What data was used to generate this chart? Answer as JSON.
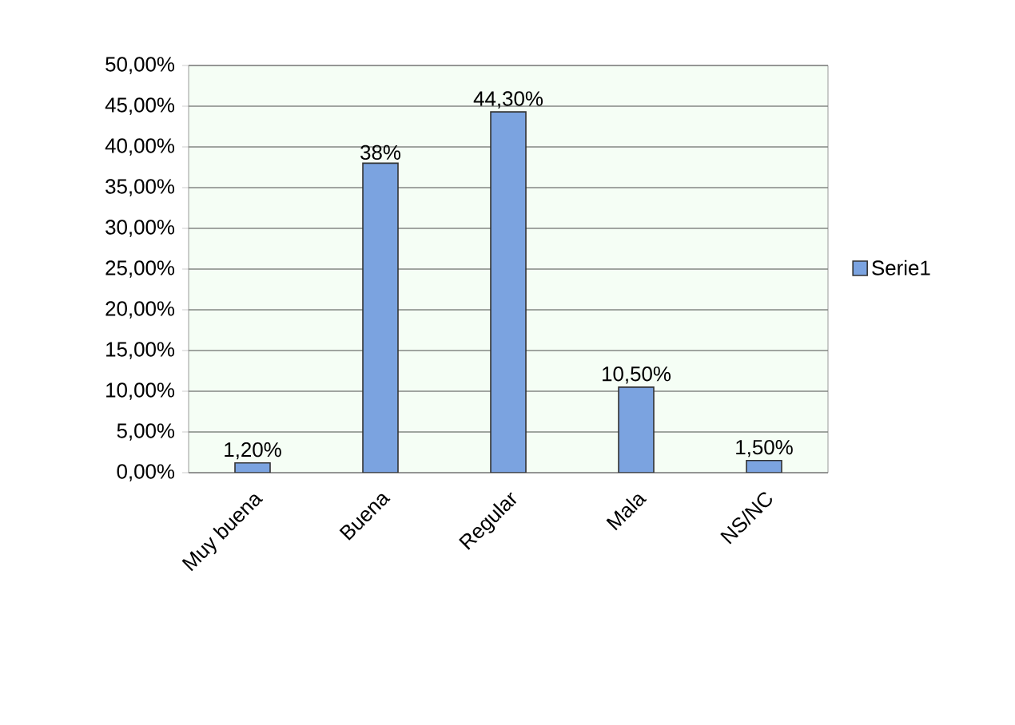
{
  "chart_data": {
    "type": "bar",
    "categories": [
      "Muy buena",
      "Buena",
      "Regular",
      "Mala",
      "NS/NC"
    ],
    "series": [
      {
        "name": "Serie1",
        "color": "#7ba3e0",
        "values": [
          1.2,
          38,
          44.3,
          10.5,
          1.5
        ],
        "value_labels": [
          "1,20%",
          "38%",
          "44,30%",
          "10,50%",
          "1,50%"
        ]
      }
    ],
    "ylim": [
      0,
      50
    ],
    "yticks": [
      {
        "value": 0,
        "label": "0,00%"
      },
      {
        "value": 5,
        "label": "5,00%"
      },
      {
        "value": 10,
        "label": "10,00%"
      },
      {
        "value": 15,
        "label": "15,00%"
      },
      {
        "value": 20,
        "label": "20,00%"
      },
      {
        "value": 25,
        "label": "25,00%"
      },
      {
        "value": 30,
        "label": "30,00%"
      },
      {
        "value": 35,
        "label": "35,00%"
      },
      {
        "value": 40,
        "label": "40,00%"
      },
      {
        "value": 45,
        "label": "45,00%"
      },
      {
        "value": 50,
        "label": "50,00%"
      }
    ],
    "grid": "y",
    "legend": "right"
  }
}
